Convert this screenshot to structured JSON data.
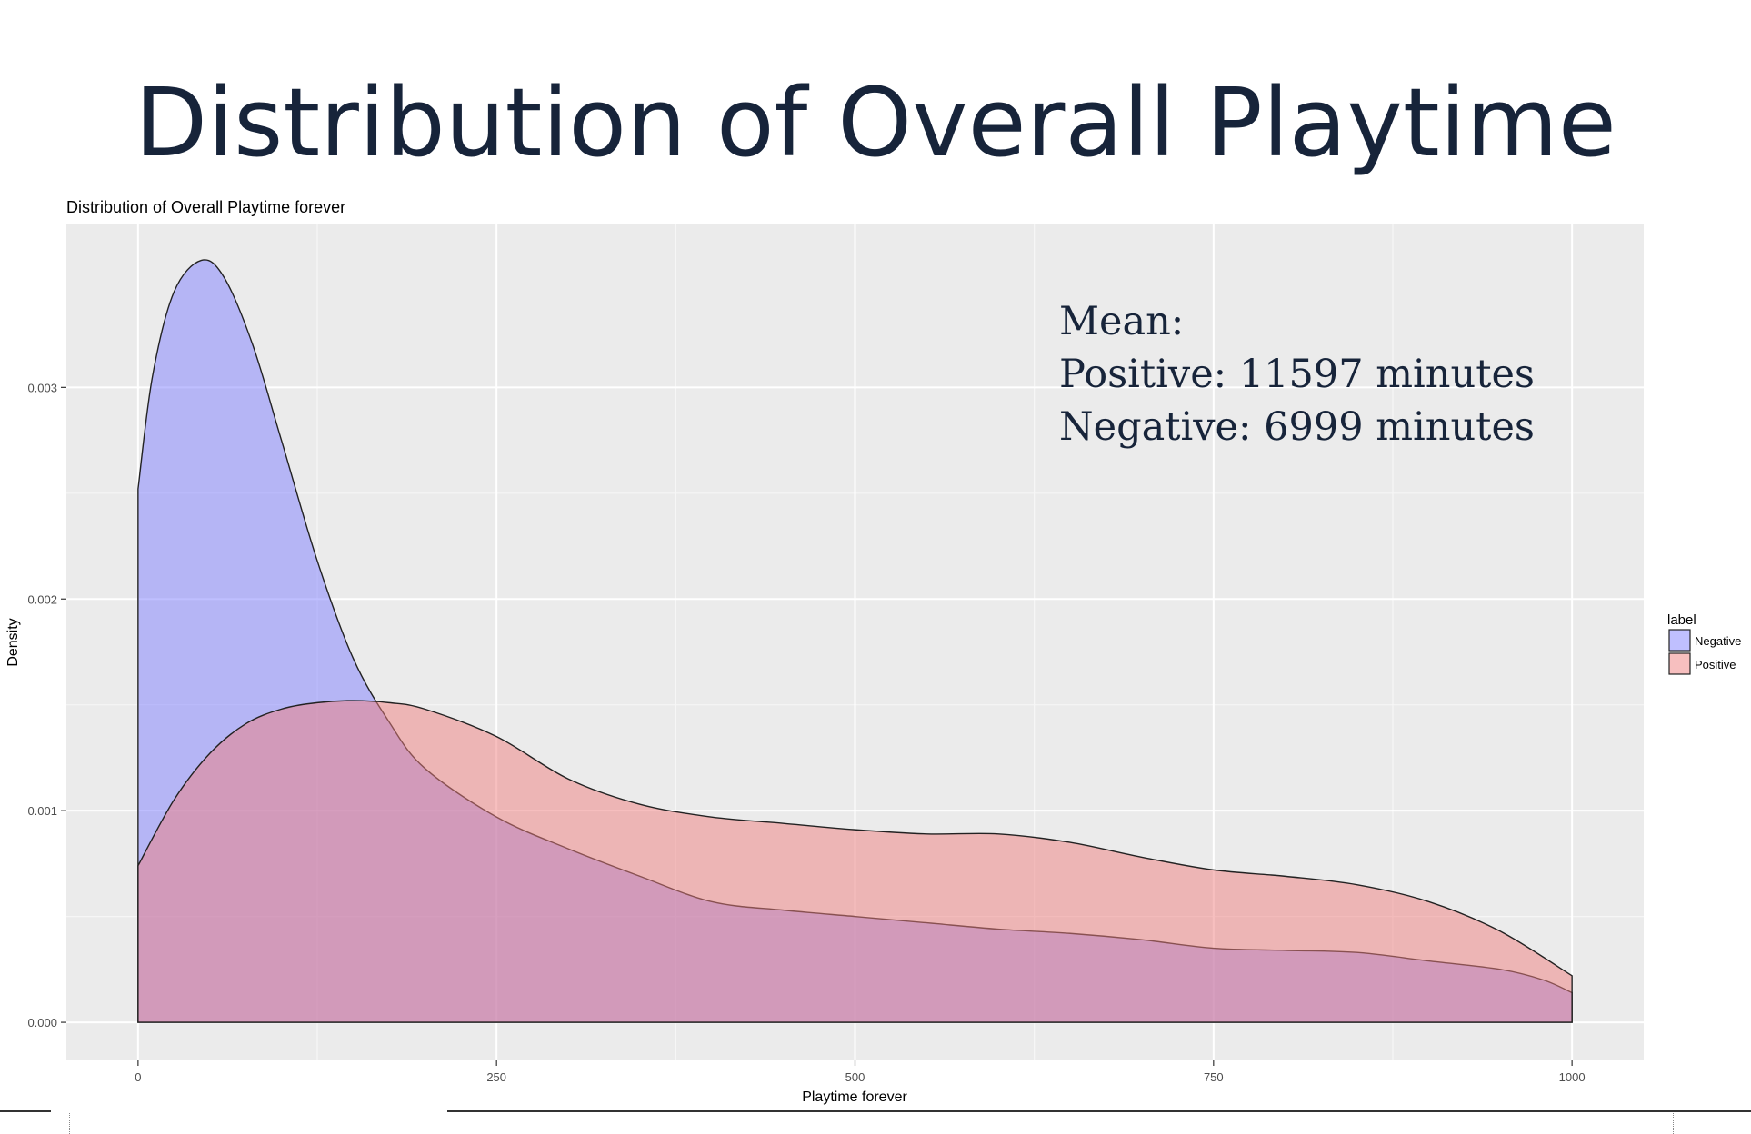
{
  "slide": {
    "title": "Distribution of Overall Playtime"
  },
  "chart_data": {
    "type": "area",
    "title": "Distribution of Overall Playtime forever",
    "xlabel": "Playtime forever",
    "ylabel": "Density",
    "xlim": [
      -50,
      1050
    ],
    "ylim": [
      -0.00018,
      0.00377
    ],
    "x_ticks": [
      0,
      250,
      500,
      750,
      1000
    ],
    "x_tick_labels": [
      "0",
      "250",
      "500",
      "750",
      "1000"
    ],
    "y_ticks": [
      0.0,
      0.001,
      0.002,
      0.003
    ],
    "y_tick_labels": [
      "0.000",
      "0.001",
      "0.002",
      "0.003"
    ],
    "grid": true,
    "panel_background": "#ebebeb",
    "legend": {
      "title": "label",
      "position": "right",
      "entries": [
        "Negative",
        "Positive"
      ]
    },
    "series": [
      {
        "name": "Negative",
        "color": "#8080ff",
        "x": [
          0,
          10,
          25,
          44,
          60,
          80,
          100,
          125,
          150,
          175,
          200,
          250,
          300,
          350,
          400,
          450,
          500,
          550,
          600,
          650,
          700,
          750,
          800,
          850,
          900,
          950,
          980,
          1000
        ],
        "y": [
          0.00252,
          0.00305,
          0.00345,
          0.0036,
          0.00352,
          0.0032,
          0.00275,
          0.00218,
          0.00172,
          0.00142,
          0.0012,
          0.00097,
          0.00082,
          0.00069,
          0.00057,
          0.00053,
          0.0005,
          0.00047,
          0.00044,
          0.00042,
          0.00039,
          0.00035,
          0.00034,
          0.00033,
          0.00029,
          0.00025,
          0.0002,
          0.00014
        ]
      },
      {
        "name": "Positive",
        "color": "#f08080",
        "x": [
          0,
          25,
          50,
          75,
          100,
          125,
          150,
          175,
          200,
          250,
          300,
          350,
          400,
          450,
          500,
          550,
          600,
          650,
          700,
          750,
          800,
          850,
          900,
          950,
          1000
        ],
        "y": [
          0.00074,
          0.00105,
          0.00127,
          0.00141,
          0.00148,
          0.00151,
          0.00152,
          0.00151,
          0.00148,
          0.00135,
          0.00115,
          0.00103,
          0.00097,
          0.00094,
          0.00091,
          0.00089,
          0.00089,
          0.00085,
          0.00078,
          0.00072,
          0.00069,
          0.00065,
          0.00057,
          0.00043,
          0.00022
        ]
      }
    ],
    "annotation": {
      "lines": [
        "Mean:",
        "Positive: 11597 minutes",
        "Negative: 6999 minutes"
      ]
    }
  }
}
